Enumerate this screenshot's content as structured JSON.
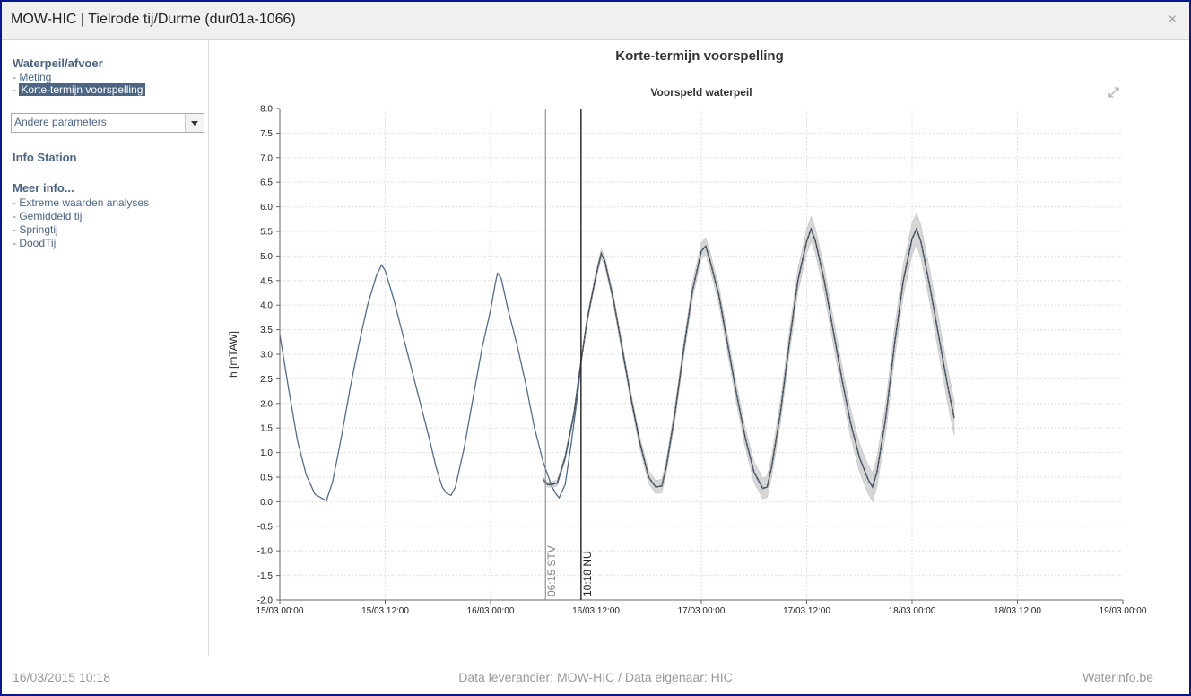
{
  "window": {
    "title": "MOW-HIC | Tielrode tij/Durme (dur01a-1066)",
    "close_label": "×"
  },
  "sidebar": {
    "section1_title": "Waterpeil/afvoer",
    "section1_items": [
      {
        "label": "- Meting"
      },
      {
        "label": "- ",
        "label_selected": "Korte-termijn voorspelling"
      }
    ],
    "dropdown_value": "Andere parameters",
    "info_station": "Info Station",
    "more_title": "Meer info...",
    "more_items": [
      {
        "label": "- Extreme waarden analyses"
      },
      {
        "label": "- Gemiddeld tij"
      },
      {
        "label": "- Springtij"
      },
      {
        "label": "- DoodTij"
      }
    ]
  },
  "main": {
    "title": "Korte-termijn voorspelling"
  },
  "chart_data": {
    "type": "line",
    "title": "Voorspeld waterpeil",
    "ylabel": "h [mTAW]",
    "xlabel": "",
    "ylim": [
      -2.0,
      8.0
    ],
    "xlim_hours": [
      0,
      96
    ],
    "grid": true,
    "x_unit": "hours from 15/03 00:00",
    "x_ticks": [
      {
        "h": 0,
        "label": "15/03 00:00"
      },
      {
        "h": 12,
        "label": "15/03 12:00"
      },
      {
        "h": 24,
        "label": "16/03 00:00"
      },
      {
        "h": 36,
        "label": "16/03 12:00"
      },
      {
        "h": 48,
        "label": "17/03 00:00"
      },
      {
        "h": 60,
        "label": "17/03 12:00"
      },
      {
        "h": 72,
        "label": "18/03 00:00"
      },
      {
        "h": 84,
        "label": "18/03 12:00"
      },
      {
        "h": 96,
        "label": "19/03 00:00"
      }
    ],
    "y_ticks": [
      "8.0",
      "7.5",
      "7.0",
      "6.5",
      "6.0",
      "5.5",
      "5.0",
      "4.5",
      "4.0",
      "3.5",
      "3.0",
      "2.5",
      "2.0",
      "1.5",
      "1.0",
      "0.5",
      "0.0",
      "-0.5",
      "-1.0",
      "-1.5",
      "-2.0"
    ],
    "markers": [
      {
        "h": 30.25,
        "label": "06:15 STV",
        "color": "#808080"
      },
      {
        "h": 34.3,
        "label": "10:18 NU",
        "color": "#222222"
      }
    ],
    "series": [
      {
        "style": "measured",
        "color": "#4f6d8f",
        "points": [
          [
            0,
            3.4
          ],
          [
            1,
            2.3
          ],
          [
            2,
            1.25
          ],
          [
            3,
            0.55
          ],
          [
            4,
            0.15
          ],
          [
            5.3,
            0.02
          ],
          [
            6,
            0.4
          ],
          [
            7,
            1.3
          ],
          [
            8,
            2.3
          ],
          [
            9,
            3.2
          ],
          [
            10,
            4.0
          ],
          [
            11,
            4.6
          ],
          [
            11.6,
            4.82
          ],
          [
            12,
            4.7
          ],
          [
            13,
            4.1
          ],
          [
            14,
            3.4
          ],
          [
            15,
            2.7
          ],
          [
            16,
            2.0
          ],
          [
            17,
            1.3
          ],
          [
            17.8,
            0.7
          ],
          [
            18.5,
            0.3
          ],
          [
            19,
            0.17
          ],
          [
            19.5,
            0.13
          ],
          [
            20,
            0.3
          ],
          [
            21,
            1.1
          ],
          [
            22,
            2.1
          ],
          [
            23,
            3.1
          ],
          [
            24,
            3.9
          ],
          [
            24.6,
            4.5
          ],
          [
            24.8,
            4.65
          ],
          [
            25.2,
            4.55
          ],
          [
            26,
            3.9
          ],
          [
            27,
            3.2
          ],
          [
            28,
            2.4
          ],
          [
            29,
            1.5
          ],
          [
            30,
            0.8
          ],
          [
            31,
            0.3
          ],
          [
            31.5,
            0.15
          ],
          [
            31.8,
            0.08
          ],
          [
            32.5,
            0.35
          ],
          [
            33.2,
            1.2
          ],
          [
            34,
            2.3
          ],
          [
            34.3,
            2.85
          ]
        ]
      },
      {
        "style": "forecast",
        "color": "#4f6d8f",
        "points": [
          [
            30.0,
            0.45
          ],
          [
            30.5,
            0.35
          ],
          [
            31.0,
            0.35
          ],
          [
            31.6,
            0.38
          ],
          [
            32.5,
            0.9
          ],
          [
            33.5,
            1.8
          ],
          [
            34.3,
            2.85
          ],
          [
            35,
            3.7
          ],
          [
            36,
            4.6
          ],
          [
            36.6,
            5.05
          ],
          [
            37,
            4.9
          ],
          [
            38,
            4.1
          ],
          [
            39,
            3.1
          ],
          [
            40,
            2.1
          ],
          [
            41,
            1.2
          ],
          [
            42,
            0.5
          ],
          [
            42.8,
            0.3
          ],
          [
            43.5,
            0.32
          ],
          [
            44,
            0.7
          ],
          [
            45,
            1.8
          ],
          [
            46,
            3.1
          ],
          [
            47,
            4.3
          ],
          [
            48,
            5.1
          ],
          [
            48.5,
            5.2
          ],
          [
            49,
            4.9
          ],
          [
            50,
            4.2
          ],
          [
            51,
            3.2
          ],
          [
            52,
            2.2
          ],
          [
            53,
            1.3
          ],
          [
            54,
            0.6
          ],
          [
            55,
            0.27
          ],
          [
            55.5,
            0.3
          ],
          [
            56,
            0.7
          ],
          [
            57,
            1.8
          ],
          [
            58,
            3.2
          ],
          [
            59,
            4.5
          ],
          [
            60,
            5.3
          ],
          [
            60.5,
            5.55
          ],
          [
            61,
            5.3
          ],
          [
            62,
            4.5
          ],
          [
            63,
            3.5
          ],
          [
            64,
            2.5
          ],
          [
            65,
            1.6
          ],
          [
            66,
            0.9
          ],
          [
            67,
            0.45
          ],
          [
            67.5,
            0.3
          ],
          [
            68,
            0.6
          ],
          [
            69,
            1.7
          ],
          [
            70,
            3.2
          ],
          [
            71,
            4.5
          ],
          [
            72,
            5.35
          ],
          [
            72.5,
            5.55
          ],
          [
            73,
            5.3
          ],
          [
            74,
            4.4
          ],
          [
            75,
            3.4
          ],
          [
            76,
            2.4
          ],
          [
            76.8,
            1.7
          ]
        ]
      }
    ]
  },
  "footer": {
    "timestamp": "16/03/2015 10:18",
    "provider": "Data leverancier: MOW-HIC / Data eigenaar: HIC",
    "brand": "Waterinfo.be"
  }
}
